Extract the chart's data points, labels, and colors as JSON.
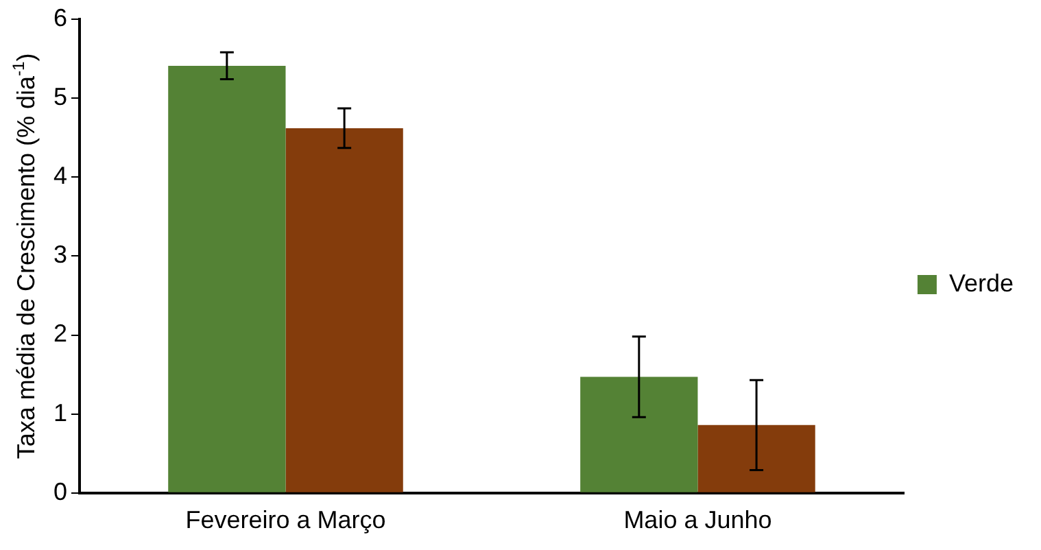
{
  "chart_data": {
    "type": "bar",
    "ylabel": "Taxa média de Crescimento (% dia$^{-1}$)",
    "categories": [
      "Fevereiro a Março",
      "Maio a Junho"
    ],
    "series": [
      {
        "name": "Verde",
        "color": "#548235",
        "values": [
          5.41,
          1.47
        ],
        "errors": [
          0.17,
          0.51
        ]
      },
      {
        "color": "#843c0c",
        "values": [
          4.62,
          0.86
        ],
        "errors": [
          0.25,
          0.57
        ]
      }
    ],
    "ylim": [
      0,
      6
    ],
    "yticks": [
      0,
      1,
      2,
      3,
      4,
      5,
      6
    ],
    "grid": false,
    "legend": "right"
  }
}
